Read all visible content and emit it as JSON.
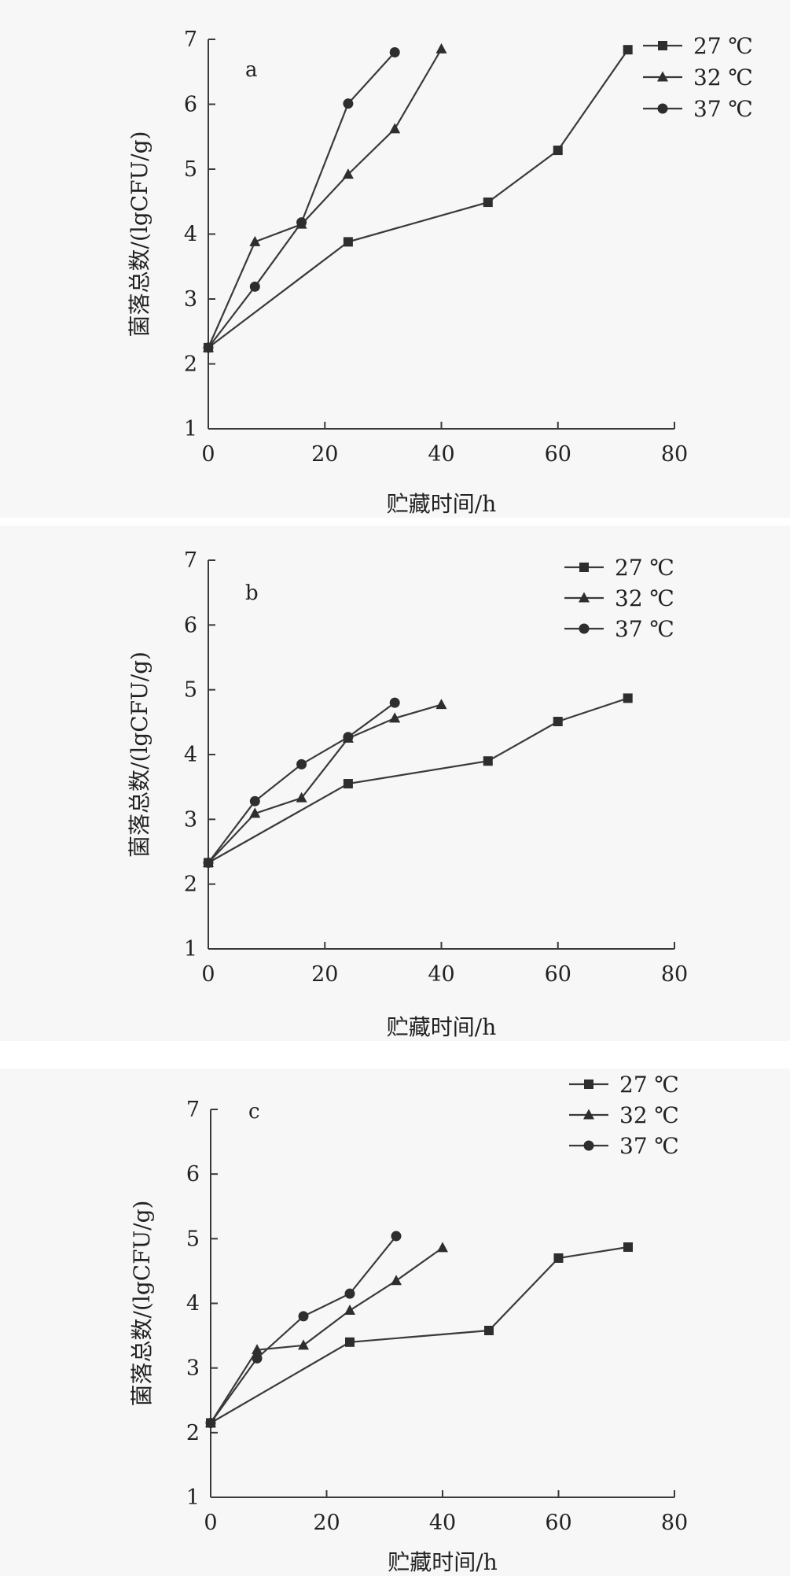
{
  "chart_data": [
    {
      "type": "line",
      "panel_label": "a",
      "xlabel": "贮藏时间/h",
      "ylabel": "菌落总数/(lgCFU/g)",
      "xlim": [
        0,
        80
      ],
      "ylim": [
        1,
        7
      ],
      "xticks": [
        "0",
        "20",
        "40",
        "60",
        "80"
      ],
      "yticks": [
        "1",
        "2",
        "3",
        "4",
        "5",
        "6",
        "7"
      ],
      "legend_position": "top-right",
      "grid": false,
      "series": [
        {
          "name": "27 ℃",
          "marker": "square",
          "x": [
            0,
            24,
            48,
            60,
            72
          ],
          "y": [
            2.25,
            3.88,
            4.49,
            5.29,
            6.84
          ]
        },
        {
          "name": "32 ℃",
          "marker": "triangle",
          "x": [
            0,
            8,
            16,
            24,
            32,
            40
          ],
          "y": [
            2.25,
            3.88,
            4.15,
            4.92,
            5.62,
            6.85
          ]
        },
        {
          "name": "37 ℃",
          "marker": "circle",
          "x": [
            0,
            8,
            16,
            24,
            32
          ],
          "y": [
            2.25,
            3.19,
            4.18,
            6.01,
            6.8
          ]
        }
      ]
    },
    {
      "type": "line",
      "panel_label": "b",
      "xlabel": "贮藏时间/h",
      "ylabel": "菌落总数/(lgCFU/g)",
      "xlim": [
        0,
        80
      ],
      "ylim": [
        1,
        7
      ],
      "xticks": [
        "0",
        "20",
        "40",
        "60",
        "80"
      ],
      "yticks": [
        "1",
        "2",
        "3",
        "4",
        "5",
        "6",
        "7"
      ],
      "legend_position": "top-right",
      "grid": false,
      "series": [
        {
          "name": "27 ℃",
          "marker": "square",
          "x": [
            0,
            24,
            48,
            60,
            72
          ],
          "y": [
            2.33,
            3.55,
            3.9,
            4.51,
            4.87
          ]
        },
        {
          "name": "32 ℃",
          "marker": "triangle",
          "x": [
            0,
            8,
            16,
            24,
            32,
            40
          ],
          "y": [
            2.33,
            3.09,
            3.33,
            4.25,
            4.56,
            4.77
          ]
        },
        {
          "name": "37 ℃",
          "marker": "circle",
          "x": [
            0,
            8,
            16,
            24,
            32
          ],
          "y": [
            2.33,
            3.28,
            3.85,
            4.27,
            4.8
          ]
        }
      ]
    },
    {
      "type": "line",
      "panel_label": "c",
      "xlabel": "贮藏时间/h",
      "ylabel": "菌落总数/(lgCFU/g)",
      "xlim": [
        0,
        80
      ],
      "ylim": [
        1,
        7
      ],
      "xticks": [
        "0",
        "20",
        "40",
        "60",
        "80"
      ],
      "yticks": [
        "1",
        "2",
        "3",
        "4",
        "5",
        "6",
        "7"
      ],
      "legend_position": "top-right",
      "grid": false,
      "series": [
        {
          "name": "27 ℃",
          "marker": "square",
          "x": [
            0,
            24,
            48,
            60,
            72
          ],
          "y": [
            2.15,
            3.4,
            3.58,
            4.7,
            4.87
          ]
        },
        {
          "name": "32 ℃",
          "marker": "triangle",
          "x": [
            0,
            8,
            16,
            24,
            32,
            40
          ],
          "y": [
            2.15,
            3.28,
            3.35,
            3.89,
            4.35,
            4.86
          ]
        },
        {
          "name": "37 ℃",
          "marker": "circle",
          "x": [
            0,
            8,
            16,
            24,
            32
          ],
          "y": [
            2.15,
            3.15,
            3.8,
            4.15,
            5.04
          ]
        }
      ]
    }
  ]
}
